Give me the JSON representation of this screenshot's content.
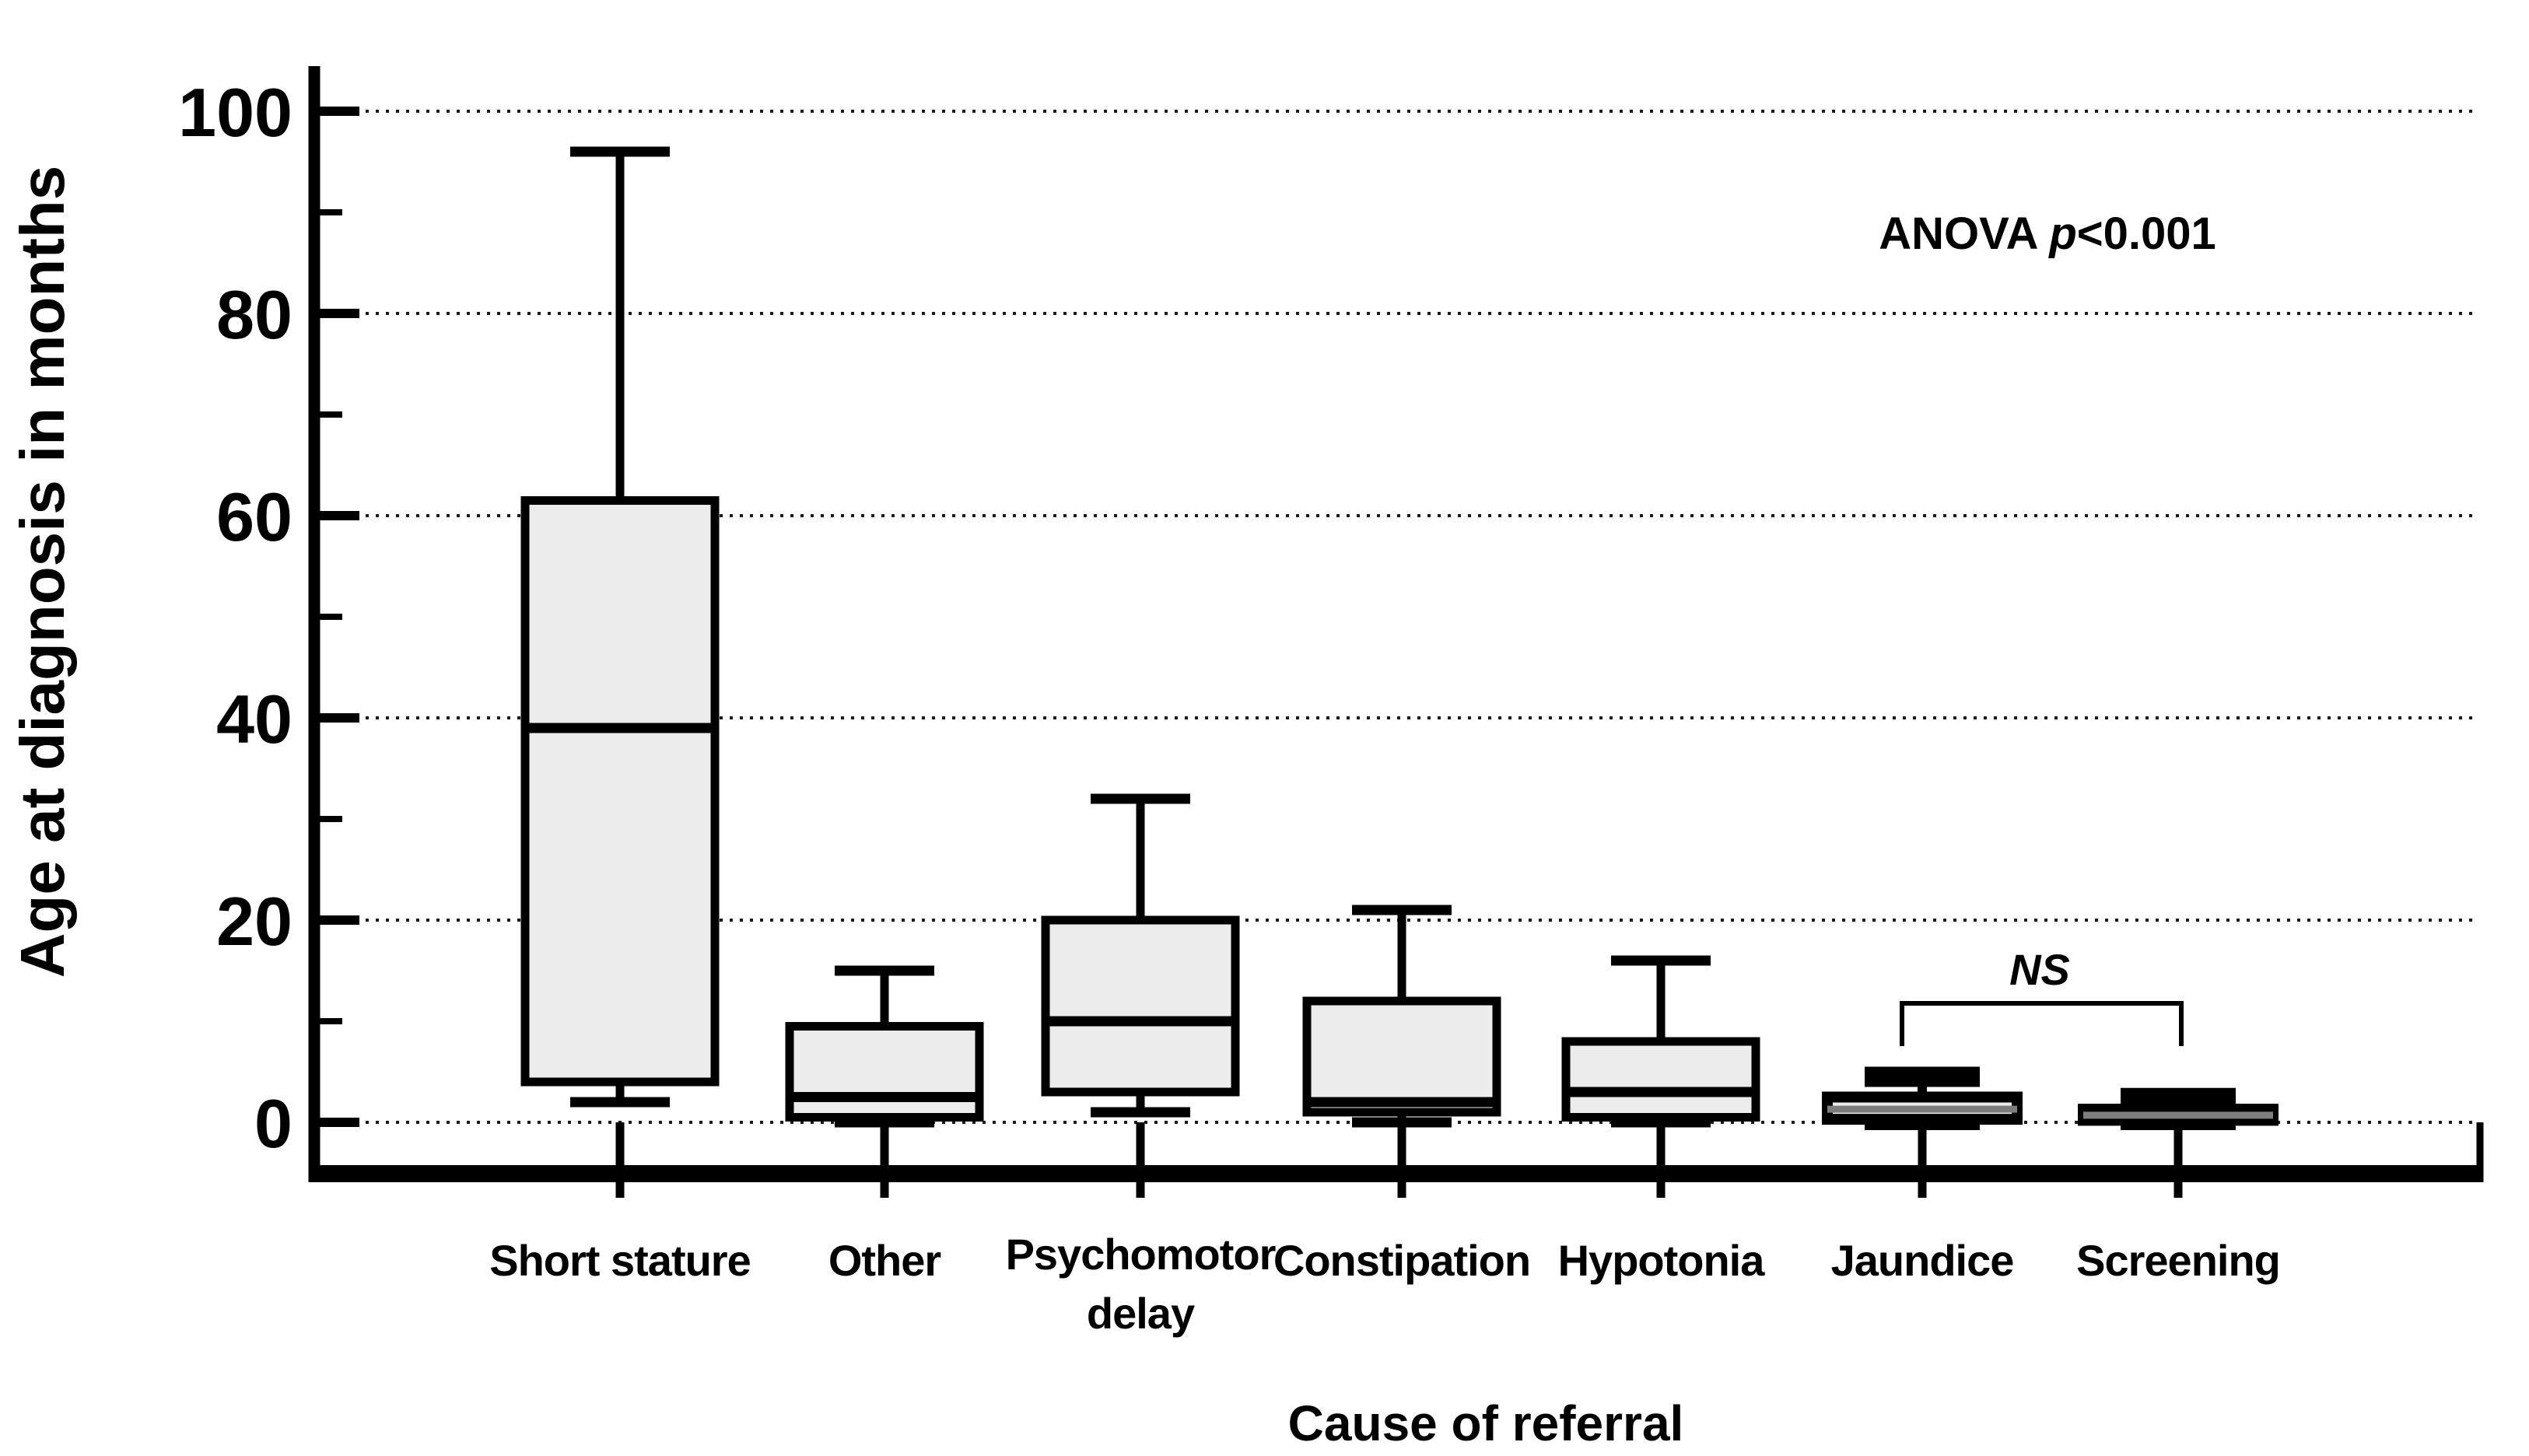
{
  "figure": {
    "y_axis_title": "Age at diagnosis in months",
    "x_axis_title": "Cause of referral",
    "anova": {
      "prefix": "ANOVA ",
      "stat": "p",
      "value": "<0.001"
    },
    "ns": {
      "label": "NS",
      "between": [
        "Jaundice",
        "Screening"
      ]
    }
  },
  "colors": {
    "box_fill": "#ececec",
    "line": "#000000",
    "thick_median": "#7d7d7d",
    "background": "#ffffff"
  },
  "chart_data": {
    "type": "box",
    "title": "",
    "xlabel": "Cause of referral",
    "ylabel": "Age at diagnosis in months",
    "ylim": [
      0,
      105
    ],
    "y_major_ticks": [
      0,
      20,
      40,
      60,
      80,
      100
    ],
    "y_major_tick_labels": [
      "0",
      "20",
      "40",
      "60",
      "80",
      "100"
    ],
    "y_minor_ticks": [
      10,
      30,
      50,
      70,
      90
    ],
    "grid": "dotted horizontal lines at major ticks",
    "legend": "none",
    "annotations": [
      {
        "text": "ANOVA p<0.001",
        "position": "top right of plot"
      },
      {
        "text": "NS",
        "type": "bracket",
        "between": [
          "Jaundice",
          "Screening"
        ]
      }
    ],
    "categories": [
      "Short stature",
      "Other",
      "Psychomotor delay",
      "Constipation",
      "Hypotonia",
      "Jaundice",
      "Screening"
    ],
    "series": [
      {
        "name": "Short stature",
        "label_lines": [
          "Short stature"
        ],
        "min": 2,
        "q1": 4,
        "median": 39,
        "q3": 61.5,
        "max": 96,
        "emphasis": "normal"
      },
      {
        "name": "Other",
        "label_lines": [
          "Other"
        ],
        "min": 0,
        "q1": 0.5,
        "median": 2.5,
        "q3": 9.5,
        "max": 15,
        "emphasis": "normal"
      },
      {
        "name": "Psychomotor delay",
        "label_lines": [
          "Psychomotor",
          "delay"
        ],
        "min": 1,
        "q1": 3,
        "median": 10,
        "q3": 20,
        "max": 32,
        "emphasis": "normal"
      },
      {
        "name": "Constipation",
        "label_lines": [
          "Constipation"
        ],
        "min": 0,
        "q1": 1,
        "median": 2,
        "q3": 12,
        "max": 21,
        "emphasis": "normal"
      },
      {
        "name": "Hypotonia",
        "label_lines": [
          "Hypotonia"
        ],
        "min": 0,
        "q1": 0.5,
        "median": 3,
        "q3": 8,
        "max": 16,
        "emphasis": "normal"
      },
      {
        "name": "Jaundice",
        "label_lines": [
          "Jaundice"
        ],
        "min": 0,
        "q1": 0.3,
        "median": 1.3,
        "q3": 2.5,
        "max": 4.5,
        "emphasis": "thick"
      },
      {
        "name": "Screening",
        "label_lines": [
          "Screening"
        ],
        "min": 0,
        "q1": 0.2,
        "median": 0.7,
        "q3": 1.3,
        "max": 2.4,
        "emphasis": "thick"
      }
    ]
  }
}
